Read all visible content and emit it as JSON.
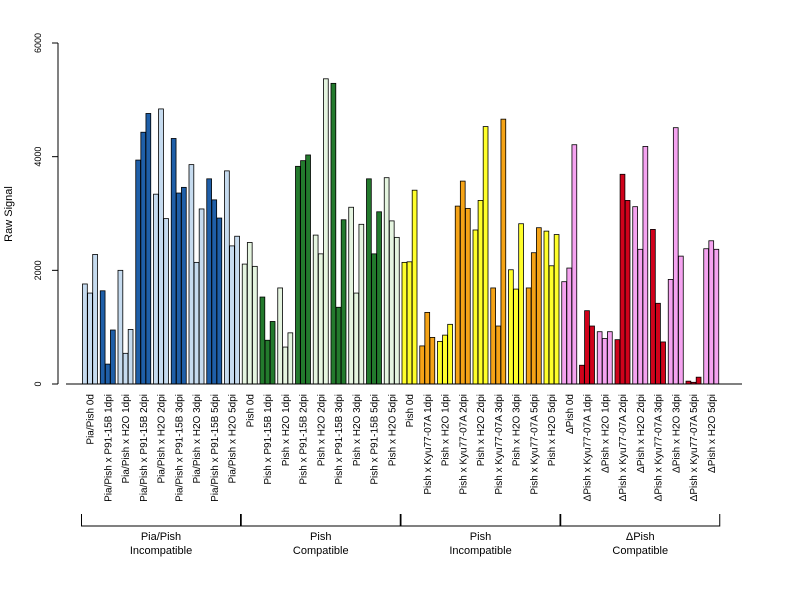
{
  "chart_data": {
    "type": "bar",
    "title": "",
    "ylabel": "Raw Signal",
    "xlabel": "",
    "ylim": [
      0,
      6000
    ],
    "yticks": [
      0,
      2000,
      4000,
      6000
    ],
    "grid": false,
    "legend": "none",
    "categories": [
      "Pia/Pish 0d",
      "Pia/Pish x P91-15B 1dpi",
      "Pia/Pish x H2O 1dpi",
      "Pia/Pish x P91-15B 2dpi",
      "Pia/Pish x H2O 2dpi",
      "Pia/Pish x P91-15B 3dpi",
      "Pia/Pish x H2O 3dpi",
      "Pia/Pish x P91-15B 5dpi",
      "Pia/Pish x H2O 5dpi",
      "Pish 0d",
      "Pish x P91-15B 1dpi",
      "Pish x H2O 1dpi",
      "Pish x P91-15B 2dpi",
      "Pish x H2O 2dpi",
      "Pish x P91-15B 3dpi",
      "Pish x H2O 3dpi",
      "Pish x P91-15B 5dpi",
      "Pish x H2O 5dpi",
      "Pish 0d",
      "Pish x Kyu77-07A 1dpi",
      "Pish x H2O 1dpi",
      "Pish x Kyu77-07A 2dpi",
      "Pish x H2O 2dpi",
      "Pish x Kyu77-07A 3dpi",
      "Pish x H2O 3dpi",
      "Pish x Kyu77-07A 5dpi",
      "Pish x H2O 5dpi",
      "ΔPish 0d",
      "ΔPish x Kyu77-07A 1dpi",
      "ΔPish x H2O 1dpi",
      "ΔPish x Kyu77-07A 2dpi",
      "ΔPish x H2O 2dpi",
      "ΔPish x Kyu77-07A 3dpi",
      "ΔPish x H2O 3dpi",
      "ΔPish x Kyu77-07A 5dpi",
      "ΔPish x H2O 5dpi"
    ],
    "values": [
      [
        1760,
        1600,
        2280
      ],
      [
        1640,
        350,
        950
      ],
      [
        2000,
        540,
        960
      ],
      [
        3940,
        4430,
        4760
      ],
      [
        3340,
        4840,
        2910
      ],
      [
        4320,
        3360,
        3460
      ],
      [
        3860,
        2140,
        3080
      ],
      [
        3610,
        3240,
        2920
      ],
      [
        3750,
        2430,
        2600
      ],
      [
        2110,
        2490,
        2070
      ],
      [
        1530,
        770,
        1100
      ],
      [
        1690,
        650,
        900
      ],
      [
        3830,
        3930,
        4030
      ],
      [
        2620,
        2290,
        5370
      ],
      [
        5290,
        1350,
        2890
      ],
      [
        3110,
        1600,
        2810
      ],
      [
        3610,
        2290,
        3030
      ],
      [
        3630,
        2870,
        2580
      ],
      [
        2140,
        2150,
        3410
      ],
      [
        670,
        1260,
        820
      ],
      [
        750,
        860,
        1050
      ],
      [
        3130,
        3570,
        3090
      ],
      [
        2710,
        3230,
        4530
      ],
      [
        1690,
        1020,
        4660
      ],
      [
        2010,
        1670,
        2820
      ],
      [
        1690,
        2310,
        2750
      ],
      [
        2690,
        2080,
        2630
      ],
      [
        1800,
        2040,
        4210
      ],
      [
        330,
        1290,
        1020
      ],
      [
        920,
        800,
        920
      ],
      [
        780,
        3690,
        3230
      ],
      [
        3120,
        2370,
        4180
      ],
      [
        2720,
        1420,
        740
      ],
      [
        1840,
        4510,
        2250
      ],
      [
        50,
        30,
        120
      ],
      [
        2380,
        2520,
        2370
      ]
    ],
    "colors": {
      "light_blue": "#c6dbef",
      "dark_blue": "#1f5fa8",
      "light_green": "#e5f5e0",
      "dark_green": "#237a2d",
      "yellow": "#ffff2a",
      "orange": "#f5a316",
      "pink": "#f5a3f0",
      "red": "#d0021b"
    },
    "groups": [
      {
        "label_line1": "Pia/Pish",
        "label_line2": "Incompatible"
      },
      {
        "label_line1": "Pish",
        "label_line2": "Compatible"
      },
      {
        "label_line1": "Pish",
        "label_line2": "Incompatible"
      },
      {
        "label_line1": "ΔPish",
        "label_line2": "Compatible"
      }
    ]
  }
}
